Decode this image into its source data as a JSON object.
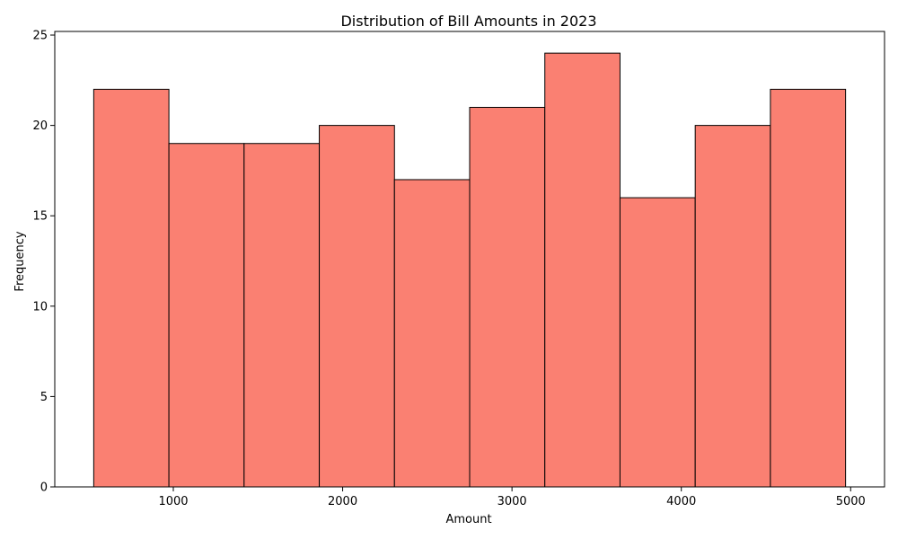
{
  "chart_data": {
    "type": "bar",
    "title": "Distribution of Bill Amounts in 2023",
    "xlabel": "Amount",
    "ylabel": "Frequency",
    "bin_edges": [
      530,
      974,
      1418,
      1862,
      2306,
      2750,
      3194,
      3638,
      4082,
      4526,
      4970
    ],
    "values": [
      22,
      19,
      19,
      20,
      17,
      21,
      24,
      16,
      20,
      22
    ],
    "xlim": [
      300,
      5200
    ],
    "ylim": [
      0,
      25.2
    ],
    "xticks": [
      1000,
      2000,
      3000,
      4000,
      5000
    ],
    "yticks": [
      0,
      5,
      10,
      15,
      20,
      25
    ],
    "grid": false,
    "legend": "none",
    "colors": {
      "bar_fill": "#fa8072",
      "bar_edge": "#000000",
      "axis": "#000000"
    }
  }
}
